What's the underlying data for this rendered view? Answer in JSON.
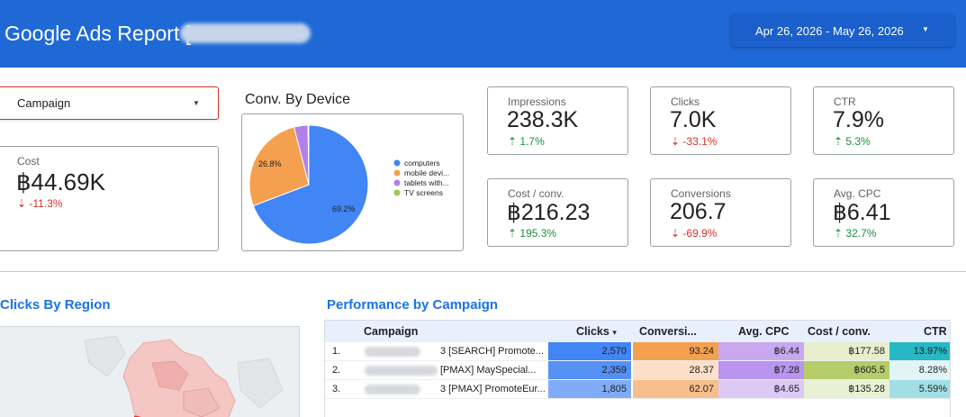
{
  "header": {
    "title": "Google Ads Report [",
    "date_range": "Apr 26, 2026 - May 26, 2026",
    "bg_color": "#1f69d6"
  },
  "filter": {
    "label": "Campaign"
  },
  "cost": {
    "label": "Cost",
    "value": "฿44.69K",
    "delta": "-11.3%",
    "direction": "down"
  },
  "kpis": [
    {
      "id": "impressions",
      "label": "Impressions",
      "value": "238.3K",
      "delta": "1.7%",
      "direction": "up"
    },
    {
      "id": "clicks",
      "label": "Clicks",
      "value": "7.0K",
      "delta": "-33.1%",
      "direction": "down"
    },
    {
      "id": "ctr",
      "label": "CTR",
      "value": "7.9%",
      "delta": "5.3%",
      "direction": "up"
    },
    {
      "id": "cost-per-conv",
      "label": "Cost / conv.",
      "value": "฿216.23",
      "delta": "195.3%",
      "direction": "up"
    },
    {
      "id": "conversions",
      "label": "Conversions",
      "value": "206.7",
      "delta": "-69.9%",
      "direction": "down"
    },
    {
      "id": "avg-cpc",
      "label": "Avg. CPC",
      "value": "฿6.41",
      "delta": "32.7%",
      "direction": "up"
    }
  ],
  "device_chart": {
    "title": "Conv. By Device",
    "labels_shown": [
      "26.8%",
      "69.2%"
    ],
    "legend": [
      "computers",
      "mobile devi...",
      "tablets with...",
      "TV screens"
    ],
    "colors": [
      "#4285f4",
      "#f4a04e",
      "#b37fe8",
      "#a4c656"
    ]
  },
  "chart_data": {
    "type": "pie",
    "title": "Conv. By Device",
    "categories": [
      "computers",
      "mobile devi...",
      "tablets with...",
      "TV screens"
    ],
    "values": [
      69.2,
      26.8,
      3.8,
      0.2
    ],
    "legend_position": "right"
  },
  "region": {
    "title": "Clicks By Region"
  },
  "performance": {
    "title": "Performance by Campaign",
    "columns": [
      "Campaign",
      "Clicks",
      "Conversi...",
      "Avg. CPC",
      "Cost / conv.",
      "CTR"
    ],
    "sort_indicator": "▾",
    "rows": [
      {
        "index": "1.",
        "campaign": "3 [SEARCH] Promote...",
        "clicks": "2,570",
        "conversions": "93.24",
        "avg_cpc": "฿6.44",
        "cost_conv": "฿177.58",
        "ctr": "13.97%"
      },
      {
        "index": "2.",
        "campaign": "[PMAX] MaySpecial...",
        "clicks": "2,359",
        "conversions": "28.37",
        "avg_cpc": "฿7.28",
        "cost_conv": "฿605.5",
        "ctr": "8.28%"
      },
      {
        "index": "3.",
        "campaign": "3 [PMAX] PromoteEur...",
        "clicks": "1,805",
        "conversions": "62.07",
        "avg_cpc": "฿4.65",
        "cost_conv": "฿135.28",
        "ctr": "5.59%"
      }
    ],
    "cell_colors": [
      [
        "#4285f4",
        "#f4a04e",
        "#c9a8f0",
        "#e8efcf",
        "#26b8c4"
      ],
      [
        "#5591f5",
        "#fde0c7",
        "#b895ee",
        "#b5cc6a",
        "#e2f5f6"
      ],
      [
        "#80acf7",
        "#f8bf8c",
        "#ddc9f6",
        "#eaf0d4",
        "#a2dfe4"
      ]
    ]
  }
}
